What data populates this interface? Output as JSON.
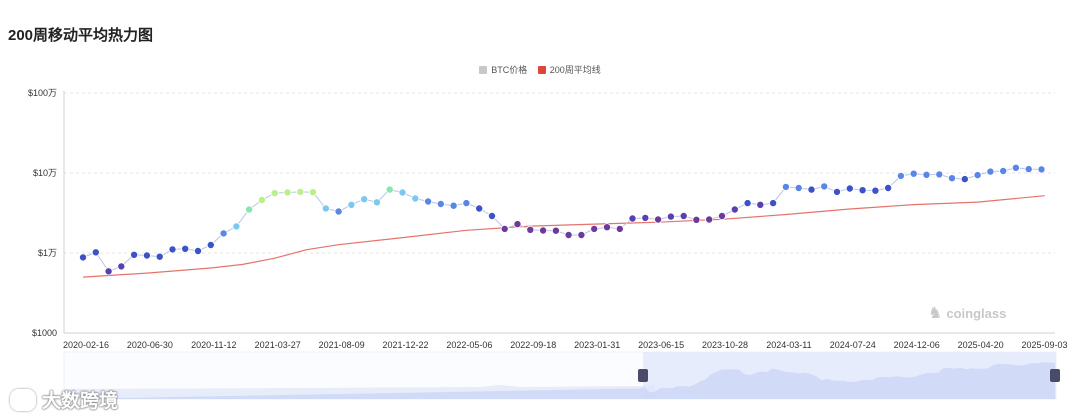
{
  "page_title": "200周移动平均热力图",
  "legend": [
    {
      "label": "BTC价格",
      "color": "#c8c8c8"
    },
    {
      "label": "200周平均线",
      "color": "#e0443c"
    }
  ],
  "watermark": "coinglass",
  "brand_text": "大数跨境",
  "colors": {
    "ma_line": "#e5736e",
    "price_line": "#b9c4e8",
    "slider_fill": "#dde6fb",
    "slider_handle": "#4a4a6a"
  },
  "chart_data": {
    "type": "line",
    "title": "200周移动平均热力图",
    "y_scale": "log",
    "ylim": [
      1000,
      1000000
    ],
    "y_ticks": [
      {
        "value": 1000,
        "label": "$1000"
      },
      {
        "value": 10000,
        "label": "$1万"
      },
      {
        "value": 100000,
        "label": "$10万"
      },
      {
        "value": 1000000,
        "label": "$100万"
      }
    ],
    "x_tick_labels": [
      "2020-02-16",
      "2020-06-30",
      "2020-11-12",
      "2021-03-27",
      "2021-08-09",
      "2021-12-22",
      "2022-05-06",
      "2022-09-18",
      "2023-01-31",
      "2023-06-15",
      "2023-10-28",
      "2024-03-11",
      "2024-07-24",
      "2024-12-06",
      "2025-04-20",
      "2025-09-03"
    ],
    "series": [
      {
        "name": "BTC价格",
        "x": [
          0,
          0.2,
          0.4,
          0.6,
          0.8,
          1.0,
          1.2,
          1.4,
          1.6,
          1.8,
          2.0,
          2.2,
          2.4,
          2.6,
          2.8,
          3.0,
          3.2,
          3.4,
          3.6,
          3.8,
          4.0,
          4.2,
          4.4,
          4.6,
          4.8,
          5.0,
          5.2,
          5.4,
          5.6,
          5.8,
          6.0,
          6.2,
          6.4,
          6.6,
          6.8,
          7.0,
          7.2,
          7.4,
          7.6,
          7.8,
          8.0,
          8.2,
          8.4,
          8.6,
          8.8,
          9.0,
          9.2,
          9.4,
          9.6,
          9.8,
          10.0,
          10.2,
          10.4,
          10.6,
          10.8,
          11.0,
          11.2,
          11.4,
          11.6,
          11.8,
          12.0,
          12.2,
          12.4,
          12.6,
          12.8,
          13.0,
          13.2,
          13.4,
          13.6,
          13.8,
          14.0,
          14.2,
          14.4,
          14.6,
          14.8,
          15.0
        ],
        "values": [
          8800,
          10200,
          5900,
          6800,
          9500,
          9300,
          9000,
          11100,
          11300,
          10600,
          12600,
          17600,
          21500,
          35000,
          46000,
          56000,
          57000,
          58000,
          57500,
          36000,
          33000,
          40000,
          47000,
          43000,
          62000,
          57000,
          48000,
          44000,
          41000,
          39000,
          42000,
          36000,
          29000,
          20000,
          23000,
          19500,
          19100,
          19000,
          16800,
          16800,
          20000,
          21000,
          20000,
          27000,
          27500,
          26200,
          28500,
          29000,
          26000,
          26200,
          29000,
          35000,
          42000,
          40000,
          42000,
          67000,
          65000,
          62000,
          68000,
          58000,
          64000,
          61000,
          60000,
          65000,
          92000,
          98000,
          95000,
          96000,
          86000,
          84000,
          94000,
          104000,
          106000,
          116000,
          112000,
          111000
        ]
      },
      {
        "name": "200周平均线",
        "x": [
          0,
          1,
          2,
          2.5,
          3,
          3.5,
          4,
          5,
          6,
          7,
          8,
          9,
          10,
          11,
          12,
          13,
          14,
          15.05
        ],
        "values": [
          5000,
          5600,
          6500,
          7200,
          8600,
          11000,
          12700,
          15600,
          19200,
          21700,
          23000,
          24300,
          26400,
          30300,
          35500,
          40300,
          43300,
          52000
        ]
      }
    ]
  }
}
